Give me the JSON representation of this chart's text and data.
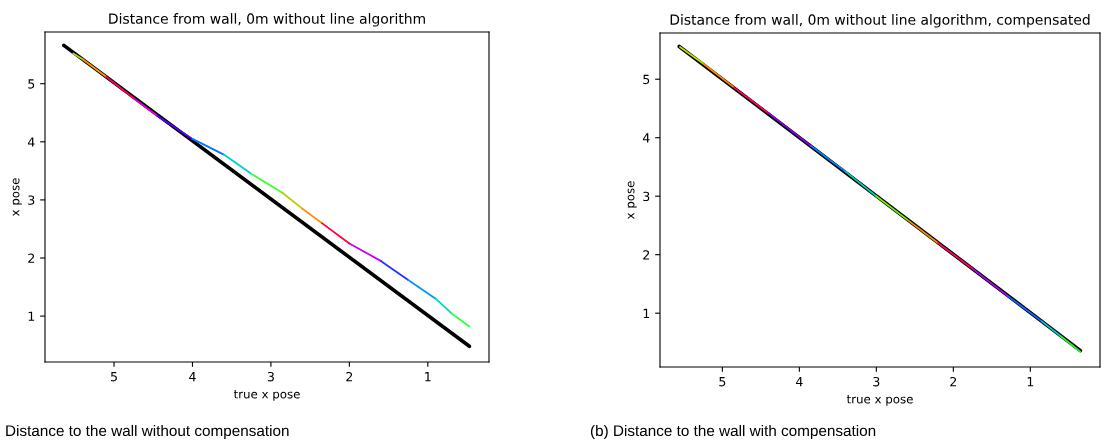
{
  "chart_data": [
    {
      "type": "line",
      "title": "Distance from wall, 0m without line algorithm",
      "xlabel": "true x pose",
      "ylabel": "x pose",
      "xlim": [
        5.88,
        0.22
      ],
      "ylim": [
        0.21,
        5.89
      ],
      "xticks": [
        5,
        4,
        3,
        2,
        1
      ],
      "yticks": [
        1,
        2,
        3,
        4,
        5
      ],
      "grid": false,
      "line_style": "solid",
      "annotations": [
        "Distance to the wall without compensation"
      ],
      "series": [
        {
          "color": "#000000",
          "x": [
            5.64,
            0.47
          ],
          "values": [
            5.66,
            0.48
          ]
        },
        {
          "color": "#aadd00",
          "x": [
            5.52,
            5.4
          ],
          "values": [
            5.52,
            5.42
          ]
        },
        {
          "color": "#ff9900",
          "x": [
            5.4,
            5.1
          ],
          "values": [
            5.42,
            5.12
          ]
        },
        {
          "color": "#ff0055",
          "x": [
            5.1,
            4.75
          ],
          "values": [
            5.12,
            4.75
          ]
        },
        {
          "color": "#dd00dd",
          "x": [
            4.75,
            4.45
          ],
          "values": [
            4.75,
            4.45
          ]
        },
        {
          "color": "#5500ff",
          "x": [
            4.45,
            4.0
          ],
          "values": [
            4.45,
            4.05
          ]
        },
        {
          "color": "#0077ff",
          "x": [
            4.0,
            3.6
          ],
          "values": [
            4.05,
            3.78
          ]
        },
        {
          "color": "#00ccdd",
          "x": [
            3.6,
            3.25
          ],
          "values": [
            3.78,
            3.45
          ]
        },
        {
          "color": "#44ff33",
          "x": [
            3.25,
            2.85
          ],
          "values": [
            3.45,
            3.12
          ]
        },
        {
          "color": "#bbcc00",
          "x": [
            2.85,
            2.6
          ],
          "values": [
            3.12,
            2.85
          ]
        },
        {
          "color": "#ff8800",
          "x": [
            2.6,
            2.35
          ],
          "values": [
            2.85,
            2.6
          ]
        },
        {
          "color": "#ff0044",
          "x": [
            2.35,
            2.0
          ],
          "values": [
            2.6,
            2.25
          ]
        },
        {
          "color": "#cc00ee",
          "x": [
            2.0,
            1.6
          ],
          "values": [
            2.25,
            1.95
          ]
        },
        {
          "color": "#2233ff",
          "x": [
            1.6,
            1.25
          ],
          "values": [
            1.95,
            1.62
          ]
        },
        {
          "color": "#0099ee",
          "x": [
            1.25,
            0.9
          ],
          "values": [
            1.62,
            1.3
          ]
        },
        {
          "color": "#00ddaa",
          "x": [
            0.9,
            0.7
          ],
          "values": [
            1.3,
            1.05
          ]
        },
        {
          "color": "#33ff44",
          "x": [
            0.7,
            0.47
          ],
          "values": [
            1.05,
            0.82
          ]
        }
      ]
    },
    {
      "type": "line",
      "title": "Distance from wall, 0m without line algorithm, compensated",
      "xlabel": "true x pose",
      "ylabel": "x pose",
      "xlim": [
        5.81,
        0.095
      ],
      "ylim": [
        0.08,
        5.79
      ],
      "xticks": [
        5,
        4,
        3,
        2,
        1
      ],
      "yticks": [
        1,
        2,
        3,
        4,
        5
      ],
      "grid": false,
      "line_style": "solid",
      "annotations": [
        "(b) Distance to the wall with compensation"
      ],
      "series": [
        {
          "color": "#000000",
          "x": [
            5.56,
            0.35
          ],
          "values": [
            5.56,
            0.36
          ]
        },
        {
          "color": "#bbdd00",
          "x": [
            5.55,
            5.25
          ],
          "values": [
            5.55,
            5.27
          ]
        },
        {
          "color": "#ff8800",
          "x": [
            5.25,
            4.85
          ],
          "values": [
            5.27,
            4.86
          ]
        },
        {
          "color": "#ff0066",
          "x": [
            4.85,
            4.4
          ],
          "values": [
            4.86,
            4.42
          ]
        },
        {
          "color": "#8800ee",
          "x": [
            4.4,
            3.85
          ],
          "values": [
            4.42,
            3.86
          ]
        },
        {
          "color": "#0088ff",
          "x": [
            3.85,
            3.4
          ],
          "values": [
            3.86,
            3.42
          ]
        },
        {
          "color": "#00ccaa",
          "x": [
            3.4,
            3.0
          ],
          "values": [
            3.42,
            3.0
          ]
        },
        {
          "color": "#77ee00",
          "x": [
            3.0,
            2.6
          ],
          "values": [
            3.0,
            2.6
          ]
        },
        {
          "color": "#ff8800",
          "x": [
            2.6,
            2.2
          ],
          "values": [
            2.6,
            2.2
          ]
        },
        {
          "color": "#ff0055",
          "x": [
            2.2,
            1.75
          ],
          "values": [
            2.2,
            1.76
          ]
        },
        {
          "color": "#aa00ee",
          "x": [
            1.75,
            1.3
          ],
          "values": [
            1.76,
            1.3
          ]
        },
        {
          "color": "#1166ff",
          "x": [
            1.3,
            0.85
          ],
          "values": [
            1.3,
            0.86
          ]
        },
        {
          "color": "#00ccbb",
          "x": [
            0.85,
            0.6
          ],
          "values": [
            0.86,
            0.6
          ]
        },
        {
          "color": "#33ee33",
          "x": [
            0.6,
            0.35
          ],
          "values": [
            0.6,
            0.34
          ]
        }
      ]
    }
  ]
}
